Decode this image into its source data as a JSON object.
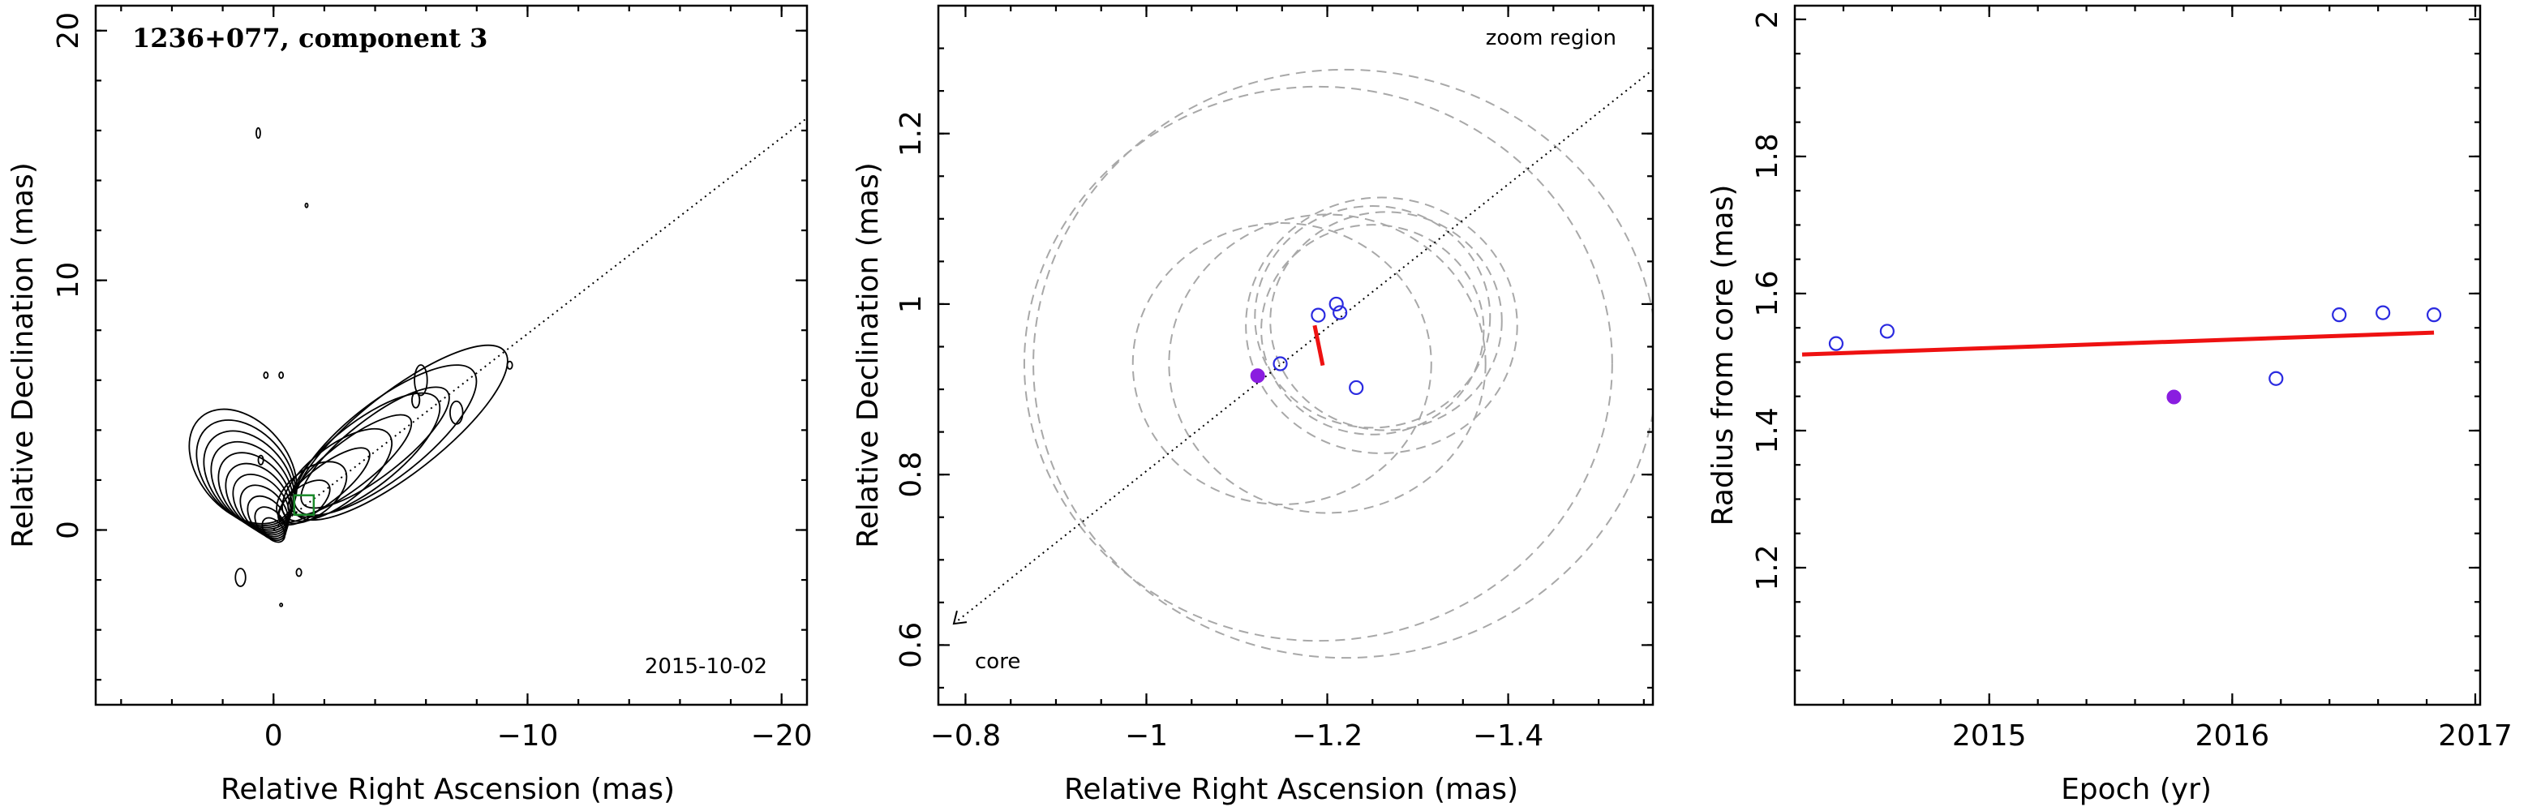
{
  "colors": {
    "fit_line": "#ee1111",
    "open_point": "#2a2ae0",
    "filled_point": "#8a1de0",
    "circles": "#a8a8a8",
    "marker_box": "#1a8a2a",
    "contour": "#000000"
  },
  "chart_data": [
    {
      "type": "scatter",
      "panel": "left",
      "title": "1236+077, component 3",
      "annotation": "2015-10-02",
      "xlabel": "Relative Right Ascension (mas)",
      "ylabel": "Relative Declination (mas)",
      "xlim": [
        7.0,
        -21.0
      ],
      "ylim": [
        -7.0,
        21.0
      ],
      "xticks": [
        {
          "value": 0,
          "label": "0"
        },
        {
          "value": -10,
          "label": "−10"
        },
        {
          "value": -20,
          "label": "−20"
        }
      ],
      "yticks": [
        {
          "value": 0,
          "label": "0"
        },
        {
          "value": 10,
          "label": "10"
        },
        {
          "value": 20,
          "label": "20"
        }
      ],
      "minor_step": 2,
      "content": "radio map contours of jet with component position marked by a square",
      "component_marker": {
        "x": -1.2,
        "y": 1.0
      },
      "direction_line": {
        "from": [
          0,
          0
        ],
        "to": [
          -21,
          16.5
        ]
      },
      "grid": false
    },
    {
      "type": "scatter",
      "panel": "middle",
      "annotation": "zoom region",
      "core_label": "core",
      "xlabel": "Relative Right Ascension (mas)",
      "ylabel": "Relative Declination (mas)",
      "xlim": [
        -0.77,
        -1.56
      ],
      "ylim": [
        0.53,
        1.35
      ],
      "xticks": [
        {
          "value": -0.8,
          "label": "−0.8"
        },
        {
          "value": -1.0,
          "label": "−1"
        },
        {
          "value": -1.2,
          "label": "−1.2"
        },
        {
          "value": -1.4,
          "label": "−1.4"
        }
      ],
      "yticks": [
        {
          "value": 0.6,
          "label": "0.6"
        },
        {
          "value": 0.8,
          "label": "0.8"
        },
        {
          "value": 1.0,
          "label": "1"
        },
        {
          "value": 1.2,
          "label": "1.2"
        }
      ],
      "minor_step": 0.05,
      "points_open": [
        {
          "x": -1.19,
          "y": 0.987
        },
        {
          "x": -1.148,
          "y": 0.93
        },
        {
          "x": -1.21,
          "y": 1.0
        },
        {
          "x": -1.214,
          "y": 0.99
        },
        {
          "x": -1.232,
          "y": 0.902
        }
      ],
      "points_filled": [
        {
          "x": -1.123,
          "y": 0.916
        }
      ],
      "uncertainty_circles": [
        {
          "cx": -1.19,
          "cy": 0.93,
          "r": 0.325
        },
        {
          "cx": -1.22,
          "cy": 0.93,
          "r": 0.345
        },
        {
          "cx": -1.25,
          "cy": 0.985,
          "r": 0.13
        },
        {
          "cx": -1.265,
          "cy": 0.98,
          "r": 0.128
        },
        {
          "cx": -1.25,
          "cy": 0.97,
          "r": 0.123
        },
        {
          "cx": -1.26,
          "cy": 0.975,
          "r": 0.15
        },
        {
          "cx": -1.15,
          "cy": 0.93,
          "r": 0.165
        },
        {
          "cx": -1.2,
          "cy": 0.93,
          "r": 0.175
        }
      ],
      "motion_vector": {
        "from": [
          -1.186,
          0.975
        ],
        "to": [
          -1.195,
          0.928
        ]
      },
      "direction_line": {
        "from": [
          -0.787,
          0.625
        ],
        "to": [
          -1.56,
          1.275
        ]
      },
      "grid": false
    },
    {
      "type": "scatter",
      "panel": "right",
      "xlabel": "Epoch (yr)",
      "ylabel": "Radius from core (mas)",
      "xlim": [
        2014.2,
        2017.02
      ],
      "ylim": [
        1.0,
        2.02
      ],
      "xticks": [
        {
          "value": 2015,
          "label": "2015"
        },
        {
          "value": 2016,
          "label": "2016"
        },
        {
          "value": 2017,
          "label": "2017"
        }
      ],
      "yticks": [
        {
          "value": 1.2,
          "label": "1.2"
        },
        {
          "value": 1.4,
          "label": "1.4"
        },
        {
          "value": 1.6,
          "label": "1.6"
        },
        {
          "value": 1.8,
          "label": "1.8"
        },
        {
          "value": 2.0,
          "label": "2"
        }
      ],
      "minor_step_x": 0.2,
      "minor_step_y": 0.05,
      "points_open": [
        {
          "x": 2014.37,
          "y": 1.527
        },
        {
          "x": 2014.58,
          "y": 1.545
        },
        {
          "x": 2016.18,
          "y": 1.476
        },
        {
          "x": 2016.44,
          "y": 1.569
        },
        {
          "x": 2016.62,
          "y": 1.572
        },
        {
          "x": 2016.83,
          "y": 1.569
        }
      ],
      "points_filled": [
        {
          "x": 2015.76,
          "y": 1.449
        }
      ],
      "fit_line": {
        "x": [
          2014.23,
          2016.83
        ],
        "y": [
          1.511,
          1.543
        ]
      },
      "grid": false
    }
  ]
}
